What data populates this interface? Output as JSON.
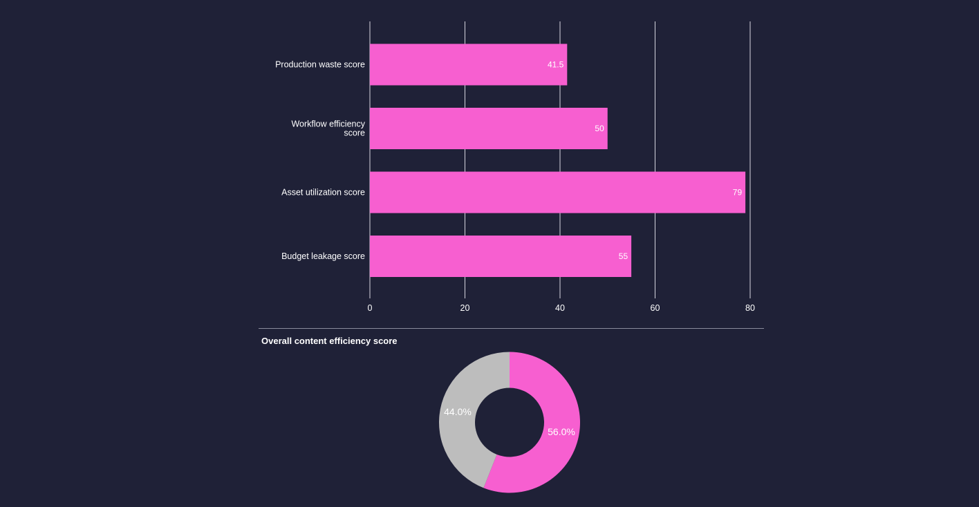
{
  "colors": {
    "background": "#1f2137",
    "bar": "#f75fd0",
    "donut_primary": "#f75fd0",
    "donut_secondary": "#bdbdbd",
    "grid": "#d8d8e0",
    "text": "#ffffff"
  },
  "chart_data": [
    {
      "type": "bar",
      "orientation": "horizontal",
      "categories": [
        [
          "Production waste score"
        ],
        [
          "Workflow efficiency",
          "score"
        ],
        [
          "Asset utilization score"
        ],
        [
          "Budget leakage score"
        ]
      ],
      "values": [
        41.5,
        50,
        79,
        55
      ],
      "value_labels": [
        "41.5",
        "50",
        "79",
        "55"
      ],
      "xlim": [
        0,
        80
      ],
      "xticks": [
        0,
        20,
        40,
        60,
        80
      ],
      "grid": true,
      "title": "",
      "xlabel": "",
      "ylabel": ""
    },
    {
      "type": "pie",
      "donut": true,
      "title": "Overall content efficiency score",
      "slices": [
        {
          "value": 56.0,
          "label": "56.0%"
        },
        {
          "value": 44.0,
          "label": "44.0%"
        }
      ]
    }
  ]
}
